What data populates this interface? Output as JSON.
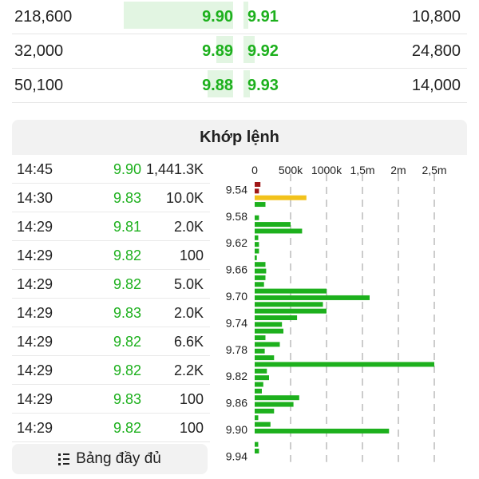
{
  "order_book": [
    {
      "bid_volume": "218,600",
      "bid_price": "9.90",
      "ask_price": "9.91",
      "ask_volume": "10,800",
      "bid_bar": 1.0,
      "ask_bar": 0.04
    },
    {
      "bid_volume": "32,000",
      "bid_price": "9.89",
      "ask_price": "9.92",
      "ask_volume": "24,800",
      "bid_bar": 0.15,
      "ask_bar": 0.1
    },
    {
      "bid_volume": "50,100",
      "bid_price": "9.88",
      "ask_price": "9.93",
      "ask_volume": "14,000",
      "bid_bar": 0.23,
      "ask_bar": 0.06
    }
  ],
  "matching": {
    "title": "Khớp lệnh",
    "trades": [
      {
        "time": "14:45",
        "price": "9.90",
        "volume": "1,441.3K"
      },
      {
        "time": "14:30",
        "price": "9.83",
        "volume": "10.0K"
      },
      {
        "time": "14:29",
        "price": "9.81",
        "volume": "2.0K"
      },
      {
        "time": "14:29",
        "price": "9.82",
        "volume": "100"
      },
      {
        "time": "14:29",
        "price": "9.82",
        "volume": "5.0K"
      },
      {
        "time": "14:29",
        "price": "9.83",
        "volume": "2.0K"
      },
      {
        "time": "14:29",
        "price": "9.82",
        "volume": "6.6K"
      },
      {
        "time": "14:29",
        "price": "9.82",
        "volume": "2.2K"
      },
      {
        "time": "14:29",
        "price": "9.83",
        "volume": "100"
      },
      {
        "time": "14:29",
        "price": "9.82",
        "volume": "100"
      }
    ],
    "full_button_label": "Bảng đầy đủ",
    "full_button_icon": "list-icon"
  },
  "colors": {
    "up": "#1db01d",
    "ref": "#f2c21b",
    "down": "#a01818",
    "bar_bg": "#e2f5e2"
  },
  "chart_data": {
    "type": "bar",
    "orientation": "horizontal",
    "x_tick_labels": [
      "0",
      "500k",
      "1000k",
      "1,5m",
      "2m",
      "2,5m"
    ],
    "x_ticks": [
      0,
      500000,
      1000000,
      1500000,
      2000000,
      2500000
    ],
    "xlim": [
      0,
      2700000
    ],
    "y_tick_labels": [
      "9.54",
      "9.58",
      "9.62",
      "9.66",
      "9.70",
      "9.74",
      "9.78",
      "9.82",
      "9.86",
      "9.90",
      "9.94"
    ],
    "grid": "vertical dashed",
    "categories": [
      "9.53",
      "9.54",
      "9.55",
      "9.56",
      "9.57",
      "9.58",
      "9.59",
      "9.60",
      "9.61",
      "9.62",
      "9.63",
      "9.64",
      "9.65",
      "9.66",
      "9.67",
      "9.68",
      "9.69",
      "9.70",
      "9.71",
      "9.72",
      "9.73",
      "9.74",
      "9.75",
      "9.76",
      "9.77",
      "9.78",
      "9.79",
      "9.80",
      "9.81",
      "9.82",
      "9.83",
      "9.84",
      "9.85",
      "9.86",
      "9.87",
      "9.88",
      "9.89",
      "9.90",
      "9.91",
      "9.92",
      "9.93",
      "9.94"
    ],
    "values": [
      80000,
      60000,
      720000,
      150000,
      0,
      60000,
      500000,
      660000,
      50000,
      60000,
      60000,
      30000,
      150000,
      160000,
      150000,
      130000,
      1000000,
      1600000,
      950000,
      1000000,
      590000,
      380000,
      400000,
      150000,
      350000,
      140000,
      270000,
      2500000,
      170000,
      200000,
      120000,
      100000,
      620000,
      540000,
      270000,
      50000,
      220000,
      1870000,
      0,
      50000,
      60000,
      0
    ],
    "bar_colors": [
      "down",
      "down",
      "ref",
      "up",
      "up",
      "up",
      "up",
      "up",
      "up",
      "up",
      "up",
      "up",
      "up",
      "up",
      "up",
      "up",
      "up",
      "up",
      "up",
      "up",
      "up",
      "up",
      "up",
      "up",
      "up",
      "up",
      "up",
      "up",
      "up",
      "up",
      "up",
      "up",
      "up",
      "up",
      "up",
      "up",
      "up",
      "up",
      "up",
      "up",
      "up",
      "up"
    ]
  }
}
